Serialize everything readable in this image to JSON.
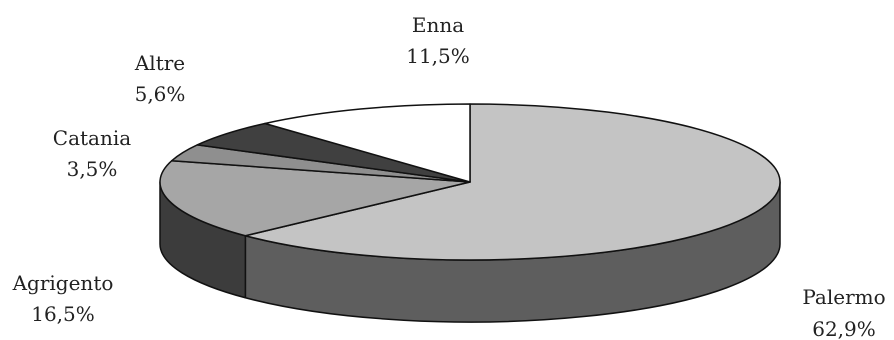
{
  "chart_data": {
    "type": "pie",
    "style": "3d-exploded-none",
    "slices": [
      {
        "name": "Palermo",
        "value": 62.9,
        "label": "Palermo",
        "value_label": "62,9%",
        "top_color": "#c4c4c4",
        "side_color": "#5e5e5e"
      },
      {
        "name": "Agrigento",
        "value": 16.5,
        "label": "Agrigento",
        "value_label": "16,5%",
        "top_color": "#a6a6a6",
        "side_color": "#3c3c3c"
      },
      {
        "name": "Catania",
        "value": 3.5,
        "label": "Catania",
        "value_label": "3,5%",
        "top_color": "#8f8f8f",
        "side_color": "#2e2e2e"
      },
      {
        "name": "Altre",
        "value": 5.6,
        "label": "Altre",
        "value_label": "5,6%",
        "top_color": "#404040",
        "side_color": "#1c1c1c"
      },
      {
        "name": "Enna",
        "value": 11.5,
        "label": "Enna",
        "value_label": "11,5%",
        "top_color": "#ffffff",
        "side_color": "#d8d8d8"
      }
    ],
    "start_angle_deg": 90,
    "direction": "clockwise",
    "legend": "none"
  }
}
